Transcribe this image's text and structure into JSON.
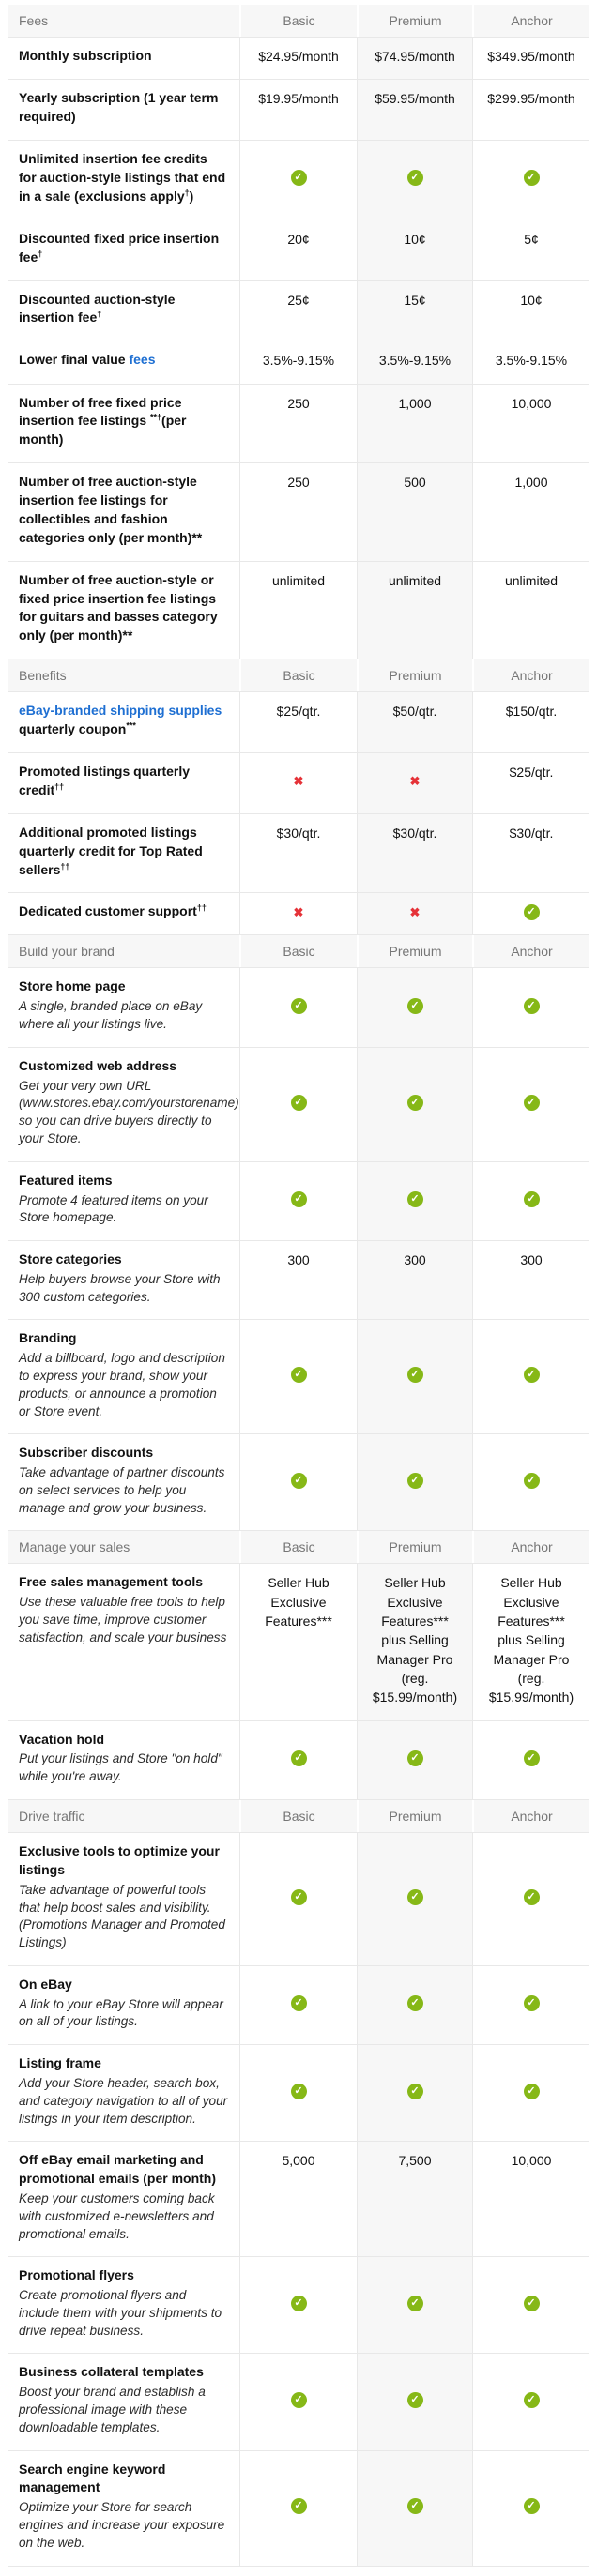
{
  "columns": [
    "Basic",
    "Premium",
    "Anchor"
  ],
  "colors": {
    "check_green": "#86b817",
    "cross_red": "#e53238",
    "link_blue": "#1e6fd2",
    "section_header_bg": "#f7f7f7",
    "premium_column_bg": "#f7f7f7",
    "row_border": "#e8e8e8",
    "section_header_text": "#767676",
    "body_text": "#111111"
  },
  "icons": {
    "check": "check-circle-icon",
    "cross": "cross-icon"
  },
  "sections": [
    {
      "title": "Fees",
      "rows": [
        {
          "label_parts": [
            {
              "text": "Monthly subscription"
            }
          ],
          "values": [
            {
              "text": "$24.95/month"
            },
            {
              "text": "$74.95/month"
            },
            {
              "text": "$349.95/month"
            }
          ]
        },
        {
          "label_parts": [
            {
              "text": "Yearly subscription (1 year term required)"
            }
          ],
          "values": [
            {
              "text": "$19.95/month"
            },
            {
              "text": "$59.95/month"
            },
            {
              "text": "$299.95/month"
            }
          ]
        },
        {
          "label_parts": [
            {
              "text": "Unlimited insertion fee credits for auction-style listings that end in a sale (exclusions apply"
            },
            {
              "sup": "†"
            },
            {
              "text": ")"
            }
          ],
          "values": [
            {
              "icon": "check-circle-icon"
            },
            {
              "icon": "check-circle-icon"
            },
            {
              "icon": "check-circle-icon"
            }
          ]
        },
        {
          "label_parts": [
            {
              "text": "Discounted fixed price insertion fee"
            },
            {
              "sup": "†"
            }
          ],
          "values": [
            {
              "text": "20¢"
            },
            {
              "text": "10¢"
            },
            {
              "text": "5¢"
            }
          ]
        },
        {
          "label_parts": [
            {
              "text": "Discounted auction-style insertion fee"
            },
            {
              "sup": "†"
            }
          ],
          "values": [
            {
              "text": "25¢"
            },
            {
              "text": "15¢"
            },
            {
              "text": "10¢"
            }
          ]
        },
        {
          "label_parts": [
            {
              "text": "Lower final value "
            },
            {
              "link": "fees"
            }
          ],
          "values": [
            {
              "text": "3.5%-9.15%"
            },
            {
              "text": "3.5%-9.15%"
            },
            {
              "text": "3.5%-9.15%"
            }
          ]
        },
        {
          "label_parts": [
            {
              "text": "Number of free fixed price insertion fee listings "
            },
            {
              "sup": "**†"
            },
            {
              "text": "(per month)"
            }
          ],
          "values": [
            {
              "text": "250"
            },
            {
              "text": "1,000"
            },
            {
              "text": "10,000"
            }
          ]
        },
        {
          "label_parts": [
            {
              "text": "Number of free auction-style insertion fee listings for collectibles and fashion categories only (per month)**"
            }
          ],
          "values": [
            {
              "text": "250"
            },
            {
              "text": "500"
            },
            {
              "text": "1,000"
            }
          ]
        },
        {
          "label_parts": [
            {
              "text": "Number of free auction-style or fixed price insertion fee listings for guitars and basses category only (per month)**"
            }
          ],
          "values": [
            {
              "text": "unlimited"
            },
            {
              "text": "unlimited"
            },
            {
              "text": "unlimited"
            }
          ]
        }
      ]
    },
    {
      "title": "Benefits",
      "rows": [
        {
          "label_parts": [
            {
              "link": "eBay-branded shipping supplies"
            },
            {
              "text": " quarterly coupon"
            },
            {
              "sup": "***"
            }
          ],
          "values": [
            {
              "text": "$25/qtr."
            },
            {
              "text": "$50/qtr."
            },
            {
              "text": "$150/qtr."
            }
          ]
        },
        {
          "label_parts": [
            {
              "text": "Promoted listings quarterly credit"
            },
            {
              "sup": "††"
            }
          ],
          "values": [
            {
              "icon": "cross-icon"
            },
            {
              "icon": "cross-icon"
            },
            {
              "text": "$25/qtr."
            }
          ]
        },
        {
          "label_parts": [
            {
              "text": "Additional promoted listings quarterly credit for Top Rated sellers"
            },
            {
              "sup": "††"
            }
          ],
          "values": [
            {
              "text": "$30/qtr."
            },
            {
              "text": "$30/qtr."
            },
            {
              "text": "$30/qtr."
            }
          ]
        },
        {
          "label_parts": [
            {
              "text": "Dedicated customer support"
            },
            {
              "sup": "††"
            }
          ],
          "values": [
            {
              "icon": "cross-icon"
            },
            {
              "icon": "cross-icon"
            },
            {
              "icon": "check-circle-icon"
            }
          ]
        }
      ]
    },
    {
      "title": "Build your brand",
      "rows": [
        {
          "label_parts": [
            {
              "text": "Store home page"
            }
          ],
          "desc": "A single, branded place on eBay where all your listings live.",
          "values": [
            {
              "icon": "check-circle-icon"
            },
            {
              "icon": "check-circle-icon"
            },
            {
              "icon": "check-circle-icon"
            }
          ]
        },
        {
          "label_parts": [
            {
              "text": "Customized web address"
            }
          ],
          "desc": "Get your very own URL (www.stores.ebay.com/yourstorename) so you can drive buyers directly to your Store.",
          "values": [
            {
              "icon": "check-circle-icon"
            },
            {
              "icon": "check-circle-icon"
            },
            {
              "icon": "check-circle-icon"
            }
          ]
        },
        {
          "label_parts": [
            {
              "text": "Featured items"
            }
          ],
          "desc": "Promote 4 featured items on your Store homepage.",
          "values": [
            {
              "icon": "check-circle-icon"
            },
            {
              "icon": "check-circle-icon"
            },
            {
              "icon": "check-circle-icon"
            }
          ]
        },
        {
          "label_parts": [
            {
              "text": "Store categories"
            }
          ],
          "desc": "Help buyers browse your Store with 300 custom categories.",
          "values": [
            {
              "text": "300"
            },
            {
              "text": "300"
            },
            {
              "text": "300"
            }
          ]
        },
        {
          "label_parts": [
            {
              "text": "Branding"
            }
          ],
          "desc": "Add a billboard, logo and description to express your brand, show your products, or announce a promotion or Store event.",
          "values": [
            {
              "icon": "check-circle-icon"
            },
            {
              "icon": "check-circle-icon"
            },
            {
              "icon": "check-circle-icon"
            }
          ]
        },
        {
          "label_parts": [
            {
              "text": "Subscriber discounts"
            }
          ],
          "desc": "Take advantage of partner discounts on select services to help you manage and grow your business.",
          "values": [
            {
              "icon": "check-circle-icon"
            },
            {
              "icon": "check-circle-icon"
            },
            {
              "icon": "check-circle-icon"
            }
          ]
        }
      ]
    },
    {
      "title": "Manage your sales",
      "rows": [
        {
          "label_parts": [
            {
              "text": "Free sales management tools"
            }
          ],
          "desc": "Use these valuable free tools to help you save time, improve customer satisfaction, and scale your business",
          "values": [
            {
              "text": "Seller Hub Exclusive Features***"
            },
            {
              "text": "Seller Hub Exclusive Features*** plus Selling Manager Pro (reg. $15.99/month)"
            },
            {
              "text": "Seller Hub Exclusive Features*** plus Selling Manager Pro (reg. $15.99/month)"
            }
          ]
        },
        {
          "label_parts": [
            {
              "text": "Vacation hold"
            }
          ],
          "desc": "Put your listings and Store \"on hold\" while you're away.",
          "values": [
            {
              "icon": "check-circle-icon"
            },
            {
              "icon": "check-circle-icon"
            },
            {
              "icon": "check-circle-icon"
            }
          ]
        }
      ]
    },
    {
      "title": "Drive traffic",
      "rows": [
        {
          "label_parts": [
            {
              "text": "Exclusive tools to optimize your listings"
            }
          ],
          "desc": "Take advantage of powerful tools that help boost sales and visibility. (Promotions Manager and Promoted Listings)",
          "values": [
            {
              "icon": "check-circle-icon"
            },
            {
              "icon": "check-circle-icon"
            },
            {
              "icon": "check-circle-icon"
            }
          ]
        },
        {
          "label_parts": [
            {
              "text": "On eBay"
            }
          ],
          "desc": "A link to your eBay Store will appear on all of your listings.",
          "values": [
            {
              "icon": "check-circle-icon"
            },
            {
              "icon": "check-circle-icon"
            },
            {
              "icon": "check-circle-icon"
            }
          ]
        },
        {
          "label_parts": [
            {
              "text": "Listing frame"
            }
          ],
          "desc": "Add your Store header, search box, and category navigation to all of your listings in your item description.",
          "values": [
            {
              "icon": "check-circle-icon"
            },
            {
              "icon": "check-circle-icon"
            },
            {
              "icon": "check-circle-icon"
            }
          ]
        },
        {
          "label_parts": [
            {
              "text": "Off eBay email marketing and promotional emails (per month)"
            }
          ],
          "desc": "Keep your customers coming back with customized e-newsletters and promotional emails.",
          "values": [
            {
              "text": "5,000"
            },
            {
              "text": "7,500"
            },
            {
              "text": "10,000"
            }
          ]
        },
        {
          "label_parts": [
            {
              "text": "Promotional flyers"
            }
          ],
          "desc": "Create promotional flyers and include them with your shipments to drive repeat business.",
          "values": [
            {
              "icon": "check-circle-icon"
            },
            {
              "icon": "check-circle-icon"
            },
            {
              "icon": "check-circle-icon"
            }
          ]
        },
        {
          "label_parts": [
            {
              "text": "Business collateral templates"
            }
          ],
          "desc": "Boost your brand and establish a professional image with these downloadable templates.",
          "values": [
            {
              "icon": "check-circle-icon"
            },
            {
              "icon": "check-circle-icon"
            },
            {
              "icon": "check-circle-icon"
            }
          ]
        },
        {
          "label_parts": [
            {
              "text": "Search engine keyword management"
            }
          ],
          "desc": "Optimize your Store for search engines and increase your exposure on the web.",
          "values": [
            {
              "icon": "check-circle-icon"
            },
            {
              "icon": "check-circle-icon"
            },
            {
              "icon": "check-circle-icon"
            }
          ]
        }
      ]
    }
  ]
}
